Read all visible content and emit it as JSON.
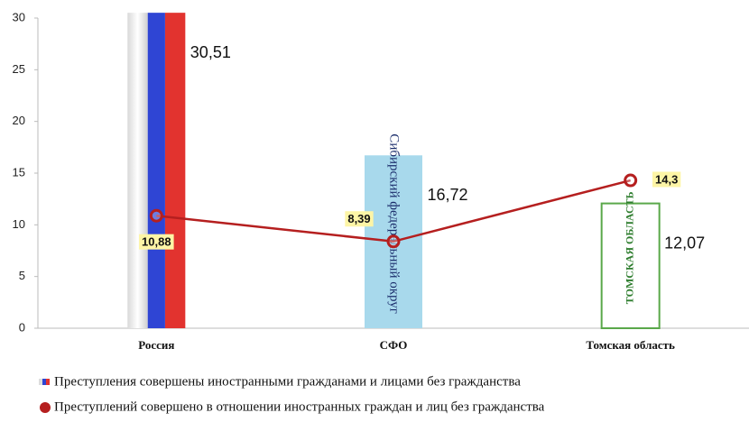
{
  "chart_data": {
    "type": "bar",
    "categories": [
      "Россия",
      "СФО",
      "Томская область"
    ],
    "series": [
      {
        "name": "Преступления совершены иностранными гражданами и лицами без гражданства",
        "type": "bar",
        "colors": [
          "#2f45d4",
          "#a8d9ec",
          "#ffffff"
        ],
        "values": [
          30.51,
          16.72,
          12.07
        ],
        "value_labels": [
          "30,51",
          "16,72",
          "12,07"
        ],
        "image_labels": [
          null,
          "Сибирский федеральный округ",
          "ТОМСКАЯ ОБЛАСТЬ"
        ]
      },
      {
        "name": "Преступлений совершено в отношении иностранных граждан и лиц без гражданства",
        "type": "line",
        "color": "#b51f1f",
        "values": [
          10.88,
          8.39,
          14.3
        ],
        "value_labels": [
          "10,88",
          "8,39",
          "14,3"
        ]
      }
    ],
    "ylim": [
      0,
      30
    ],
    "yticks": [
      0,
      5,
      10,
      15,
      20,
      25,
      30
    ],
    "grid": false
  }
}
